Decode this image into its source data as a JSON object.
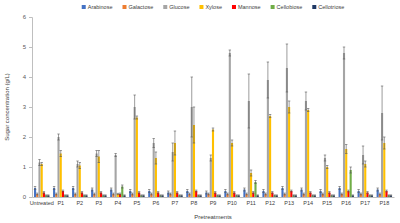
{
  "chart_data": {
    "type": "bar",
    "x_label": "Pretreatments",
    "y_label": "Sugar concentration (g/L)",
    "categories": [
      "Untreated",
      "P1",
      "P2",
      "P3",
      "P4",
      "P5",
      "P6",
      "P7",
      "P8",
      "P9",
      "P10",
      "P11",
      "P12",
      "P13",
      "P14",
      "P15",
      "P16",
      "P17",
      "P18"
    ],
    "ylim": [
      0,
      6
    ],
    "yticks": [
      0,
      1,
      2,
      3,
      4,
      5,
      6
    ],
    "grid": false,
    "legend": "top",
    "series": [
      {
        "name": "Arabinose",
        "color": "#4472c4",
        "values": [
          0.3,
          0.3,
          0.3,
          0.25,
          0.25,
          0.2,
          0.2,
          0.15,
          0.2,
          0.15,
          0.2,
          0.25,
          0.2,
          0.3,
          0.25,
          0.2,
          0.3,
          0.2,
          0.25
        ],
        "errors": [
          0.05,
          0.05,
          0.05,
          0.05,
          0.05,
          0.05,
          0.05,
          0.05,
          0.05,
          0.05,
          0.05,
          0.05,
          0.05,
          0.05,
          0.05,
          0.05,
          0.05,
          0.05,
          0.05
        ]
      },
      {
        "name": "Galactose",
        "color": "#ed7d31",
        "values": [
          0.1,
          0.1,
          0.1,
          0.1,
          0.1,
          0.1,
          0.1,
          0.1,
          0.1,
          0.1,
          0.1,
          0.1,
          0.1,
          0.1,
          0.1,
          0.1,
          0.1,
          0.1,
          0.1
        ],
        "errors": [
          0.03,
          0.03,
          0.03,
          0.03,
          0.03,
          0.03,
          0.03,
          0.03,
          0.03,
          0.03,
          0.03,
          0.03,
          0.03,
          0.03,
          0.03,
          0.03,
          0.03,
          0.03,
          0.03
        ]
      },
      {
        "name": "Glucose",
        "color": "#a5a5a5",
        "values": [
          1.15,
          2.0,
          1.1,
          1.45,
          1.4,
          3.0,
          1.8,
          1.5,
          3.0,
          1.3,
          4.8,
          3.2,
          3.9,
          4.3,
          3.2,
          1.3,
          4.8,
          1.4,
          2.8
        ],
        "errors": [
          0.1,
          0.1,
          0.1,
          0.1,
          0.05,
          0.4,
          0.15,
          0.3,
          1.0,
          0.1,
          0.1,
          0.9,
          0.6,
          0.8,
          0.3,
          0.1,
          0.2,
          0.3,
          0.9
        ]
      },
      {
        "name": "Xylose",
        "color": "#ffc000",
        "values": [
          1.1,
          1.45,
          1.05,
          1.35,
          0.1,
          2.65,
          1.3,
          1.8,
          2.4,
          2.25,
          1.8,
          0.8,
          2.7,
          3.0,
          2.9,
          1.0,
          1.6,
          1.1,
          1.8
        ],
        "errors": [
          0.05,
          0.1,
          0.1,
          0.2,
          0.02,
          0.05,
          0.2,
          0.4,
          0.6,
          0.05,
          0.1,
          0.1,
          0.05,
          0.2,
          0.05,
          0.05,
          0.15,
          0.1,
          0.2
        ]
      },
      {
        "name": "Mannose",
        "color": "#ff0000",
        "values": [
          0.15,
          0.2,
          0.15,
          0.15,
          0.1,
          0.15,
          0.15,
          0.15,
          0.2,
          0.15,
          0.15,
          0.15,
          0.15,
          0.2,
          0.15,
          0.15,
          0.2,
          0.15,
          0.2
        ],
        "errors": [
          0.03,
          0.03,
          0.03,
          0.03,
          0.03,
          0.03,
          0.03,
          0.03,
          0.03,
          0.03,
          0.03,
          0.03,
          0.03,
          0.03,
          0.03,
          0.03,
          0.03,
          0.03,
          0.03
        ]
      },
      {
        "name": "Cellobiose",
        "color": "#70ad47",
        "values": [
          0.05,
          0.05,
          0.05,
          0.05,
          0.35,
          0.05,
          0.05,
          0.05,
          0.05,
          0.05,
          0.05,
          0.5,
          0.05,
          0.05,
          0.05,
          0.05,
          0.9,
          0.05,
          0.05
        ],
        "errors": [
          0.02,
          0.02,
          0.02,
          0.02,
          0.05,
          0.02,
          0.02,
          0.02,
          0.02,
          0.02,
          0.02,
          0.05,
          0.02,
          0.02,
          0.02,
          0.02,
          0.1,
          0.02,
          0.02
        ]
      },
      {
        "name": "Cellotriose",
        "color": "#1f3864",
        "values": [
          0.05,
          0.05,
          0.05,
          0.05,
          0.05,
          0.05,
          0.05,
          0.05,
          0.05,
          0.05,
          0.05,
          0.05,
          0.05,
          0.05,
          0.05,
          0.05,
          0.05,
          0.05,
          0.05
        ],
        "errors": [
          0.02,
          0.02,
          0.02,
          0.02,
          0.02,
          0.02,
          0.02,
          0.02,
          0.02,
          0.02,
          0.02,
          0.02,
          0.02,
          0.02,
          0.02,
          0.02,
          0.02,
          0.02,
          0.02
        ]
      }
    ]
  }
}
